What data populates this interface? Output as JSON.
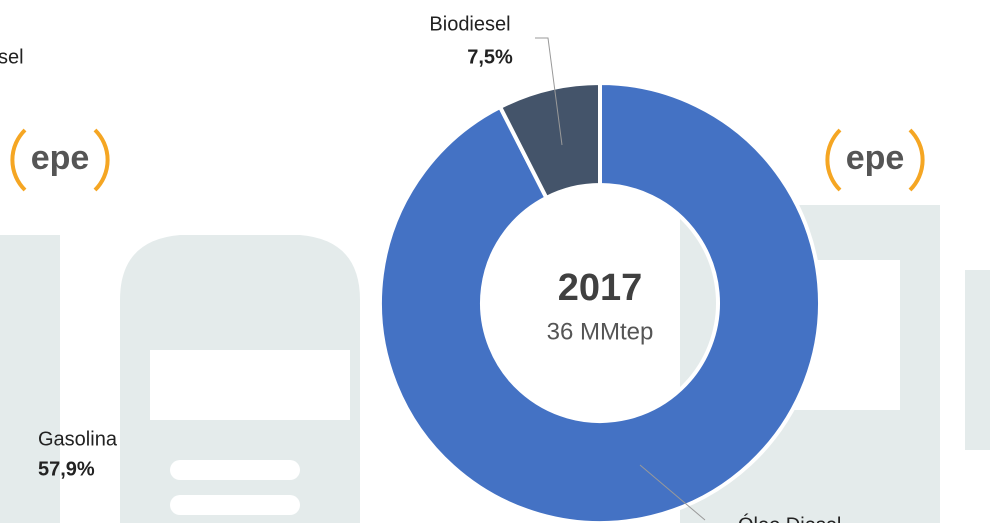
{
  "chart_data": {
    "type": "donut",
    "center_title": "2017",
    "center_subtitle": "36 MMtep",
    "categories": [
      "Óleo Diesel",
      "Biodiesel"
    ],
    "values": [
      92.5,
      7.5
    ],
    "value_labels": [
      null,
      "7,5%"
    ],
    "colors": [
      "#4472c4",
      "#44546a"
    ]
  },
  "left_fragment": {
    "partial_label": "sel",
    "gasolina_label": "Gasolina",
    "gasolina_value": "57,9%"
  },
  "logo_text": "epe"
}
